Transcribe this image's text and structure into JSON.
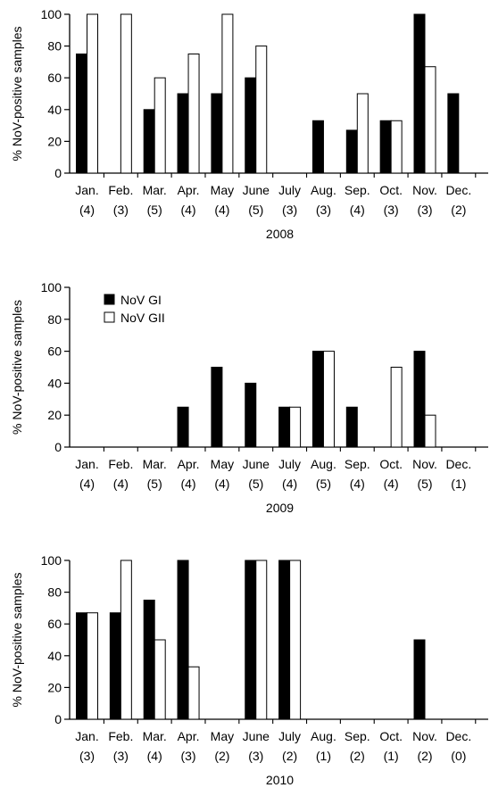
{
  "chart_data": [
    {
      "type": "bar",
      "title": "",
      "xlabel": "2008",
      "ylabel": "% NoV-positive samples",
      "ylim": [
        0,
        100
      ],
      "yticks": [
        0,
        20,
        40,
        60,
        80,
        100
      ],
      "grid": false,
      "legend": "none",
      "categories": [
        "Jan.",
        "Feb.",
        "Mar.",
        "Apr.",
        "May",
        "June",
        "July",
        "Aug.",
        "Sep.",
        "Oct.",
        "Nov.",
        "Dec."
      ],
      "counts": [
        "(4)",
        "(3)",
        "(5)",
        "(4)",
        "(4)",
        "(5)",
        "(3)",
        "(3)",
        "(4)",
        "(3)",
        "(3)",
        "(2)"
      ],
      "series": [
        {
          "name": "NoV GI",
          "color": "#000000",
          "values": [
            75,
            0,
            40,
            50,
            50,
            60,
            0,
            33,
            27,
            33,
            100,
            50
          ]
        },
        {
          "name": "NoV GII",
          "color": "#ffffff",
          "values": [
            100,
            100,
            60,
            75,
            100,
            80,
            0,
            0,
            50,
            33,
            67,
            0
          ]
        }
      ]
    },
    {
      "type": "bar",
      "title": "",
      "xlabel": "2009",
      "ylabel": "% NoV-positive samples",
      "ylim": [
        0,
        100
      ],
      "yticks": [
        0,
        20,
        40,
        60,
        80,
        100
      ],
      "grid": false,
      "legend": "top-left",
      "categories": [
        "Jan.",
        "Feb.",
        "Mar.",
        "Apr.",
        "May",
        "June",
        "July",
        "Aug.",
        "Sep.",
        "Oct.",
        "Nov.",
        "Dec."
      ],
      "counts": [
        "(4)",
        "(4)",
        "(5)",
        "(4)",
        "(4)",
        "(5)",
        "(4)",
        "(5)",
        "(4)",
        "(4)",
        "(5)",
        "(1)"
      ],
      "series": [
        {
          "name": "NoV GI",
          "color": "#000000",
          "values": [
            0,
            0,
            0,
            25,
            50,
            40,
            25,
            60,
            25,
            0,
            60,
            0
          ]
        },
        {
          "name": "NoV GII",
          "color": "#ffffff",
          "values": [
            0,
            0,
            0,
            0,
            0,
            0,
            25,
            60,
            0,
            50,
            20,
            0
          ]
        }
      ]
    },
    {
      "type": "bar",
      "title": "",
      "xlabel": "2010",
      "ylabel": "% NoV-positive samples",
      "ylim": [
        0,
        100
      ],
      "yticks": [
        0,
        20,
        40,
        60,
        80,
        100
      ],
      "grid": false,
      "legend": "none",
      "categories": [
        "Jan.",
        "Feb.",
        "Mar.",
        "Apr.",
        "May",
        "June",
        "July",
        "Aug.",
        "Sep.",
        "Oct.",
        "Nov.",
        "Dec."
      ],
      "counts": [
        "(3)",
        "(3)",
        "(4)",
        "(3)",
        "(2)",
        "(3)",
        "(2)",
        "(1)",
        "(2)",
        "(1)",
        "(2)",
        "(0)"
      ],
      "series": [
        {
          "name": "NoV GI",
          "color": "#000000",
          "values": [
            67,
            67,
            75,
            100,
            0,
            100,
            100,
            0,
            0,
            0,
            50,
            0
          ]
        },
        {
          "name": "NoV GII",
          "color": "#ffffff",
          "values": [
            67,
            100,
            50,
            33,
            0,
            100,
            100,
            0,
            0,
            0,
            0,
            0
          ]
        }
      ]
    }
  ]
}
